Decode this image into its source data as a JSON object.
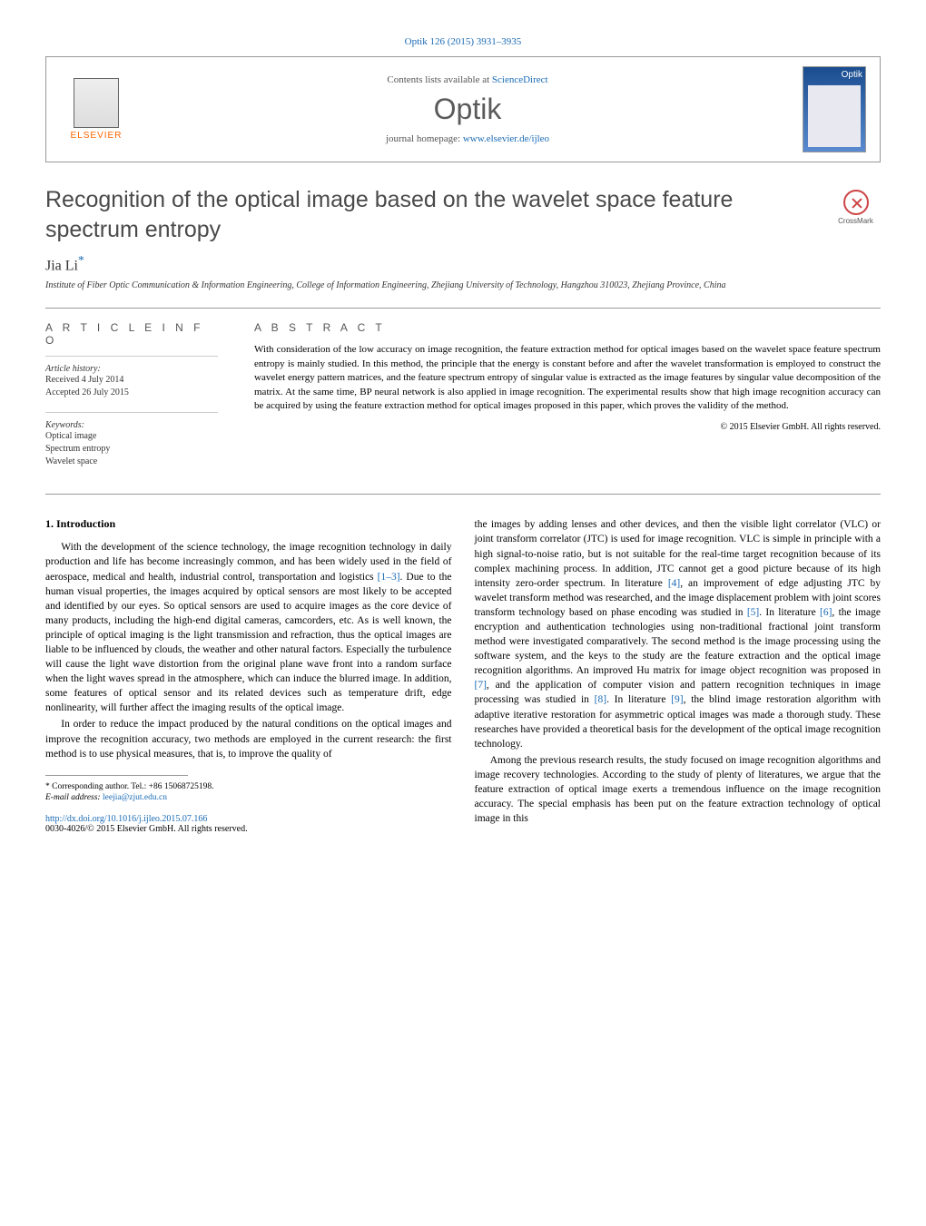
{
  "journal_ref": "Optik 126 (2015) 3931–3935",
  "header": {
    "publisher": "ELSEVIER",
    "contents_prefix": "Contents lists available at ",
    "contents_link": "ScienceDirect",
    "journal_name": "Optik",
    "homepage_prefix": "journal homepage: ",
    "homepage_url": "www.elsevier.de/ijleo",
    "cover_label": "Optik"
  },
  "crossmark": "CrossMark",
  "title": "Recognition of the optical image based on the wavelet space feature spectrum entropy",
  "author": "Jia Li",
  "author_marker": "*",
  "affiliation": "Institute of Fiber Optic Communication & Information Engineering, College of Information Engineering, Zhejiang University of Technology, Hangzhou 310023, Zhejiang Province, China",
  "info": {
    "heading": "A R T I C L E   I N F O",
    "history_label": "Article history:",
    "received": "Received 4 July 2014",
    "accepted": "Accepted 26 July 2015",
    "keywords_label": "Keywords:",
    "keywords": [
      "Optical image",
      "Spectrum entropy",
      "Wavelet space"
    ]
  },
  "abstract": {
    "heading": "A B S T R A C T",
    "text": "With consideration of the low accuracy on image recognition, the feature extraction method for optical images based on the wavelet space feature spectrum entropy is mainly studied. In this method, the principle that the energy is constant before and after the wavelet transformation is employed to construct the wavelet energy pattern matrices, and the feature spectrum entropy of singular value is extracted as the image features by singular value decomposition of the matrix. At the same time, BP neural network is also applied in image recognition. The experimental results show that high image recognition accuracy can be acquired by using the feature extraction method for optical images proposed in this paper, which proves the validity of the method.",
    "copyright": "© 2015 Elsevier GmbH. All rights reserved."
  },
  "section1_heading": "1. Introduction",
  "col1": {
    "p1": "With the development of the science technology, the image recognition technology in daily production and life has become increasingly common, and has been widely used in the field of aerospace, medical and health, industrial control, transportation and logistics ",
    "ref1": "[1–3]",
    "p1b": ". Due to the human visual properties, the images acquired by optical sensors are most likely to be accepted and identified by our eyes. So optical sensors are used to acquire images as the core device of many products, including the high-end digital cameras, camcorders, etc. As is well known, the principle of optical imaging is the light transmission and refraction, thus the optical images are liable to be influenced by clouds, the weather and other natural factors. Especially the turbulence will cause the light wave distortion from the original plane wave front into a random surface when the light waves spread in the atmosphere, which can induce the blurred image. In addition, some features of optical sensor and its related devices such as temperature drift, edge nonlinearity, will further affect the imaging results of the optical image.",
    "p2": "In order to reduce the impact produced by the natural conditions on the optical images and improve the recognition accuracy, two methods are employed in the current research: the first method is to use physical measures, that is, to improve the quality of"
  },
  "col2": {
    "p1a": "the images by adding lenses and other devices, and then the visible light correlator (VLC) or joint transform correlator (JTC) is used for image recognition. VLC is simple in principle with a high signal-to-noise ratio, but is not suitable for the real-time target recognition because of its complex machining process. In addition, JTC cannot get a good picture because of its high intensity zero-order spectrum. In literature ",
    "ref4": "[4]",
    "p1b": ", an improvement of edge adjusting JTC by wavelet transform method was researched, and the image displacement problem with joint scores transform technology based on phase encoding was studied in ",
    "ref5": "[5]",
    "p1c": ". In literature ",
    "ref6": "[6]",
    "p1d": ", the image encryption and authentication technologies using non-traditional fractional joint transform method were investigated comparatively. The second method is the image processing using the software system, and the keys to the study are the feature extraction and the optical image recognition algorithms. An improved Hu matrix for image object recognition was proposed in ",
    "ref7": "[7]",
    "p1e": ", and the application of computer vision and pattern recognition techniques in image processing was studied in ",
    "ref8": "[8]",
    "p1f": ". In literature ",
    "ref9": "[9]",
    "p1g": ", the blind image restoration algorithm with adaptive iterative restoration for asymmetric optical images was made a thorough study. These researches have provided a theoretical basis for the development of the optical image recognition technology.",
    "p2": "Among the previous research results, the study focused on image recognition algorithms and image recovery technologies. According to the study of plenty of literatures, we argue that the feature extraction of optical image exerts a tremendous influence on the image recognition accuracy. The special emphasis has been put on the feature extraction technology of optical image in this"
  },
  "footnote": {
    "corr": "* Corresponding author. Tel.: +86 15068725198.",
    "email_label": "E-mail address: ",
    "email": "leejia@zjut.edu.cn"
  },
  "doi": {
    "url": "http://dx.doi.org/10.1016/j.ijleo.2015.07.166",
    "issn_line": "0030-4026/© 2015 Elsevier GmbH. All rights reserved."
  },
  "colors": {
    "link": "#1a6bb5",
    "publisher": "#ff6600",
    "heading_gray": "#5a5a5a"
  }
}
